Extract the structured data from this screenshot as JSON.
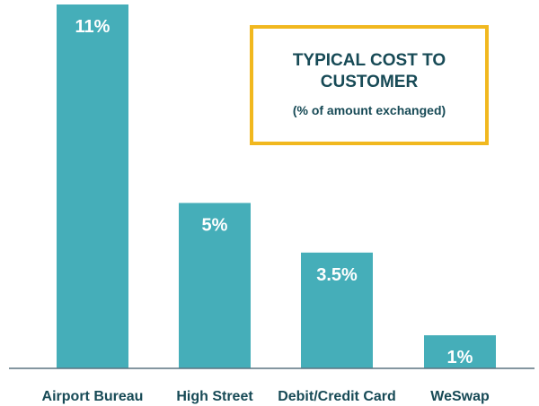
{
  "chart_data": {
    "type": "bar",
    "title_lines": [
      "TYPICAL COST TO",
      "CUSTOMER"
    ],
    "subtitle": "(% of amount exchanged)",
    "categories": [
      "Airport Bureau",
      "High Street",
      "Debit/Credit Card",
      "WeSwap"
    ],
    "values": [
      11,
      5,
      3.5,
      1
    ],
    "data_labels": [
      "11%",
      "5%",
      "3.5%",
      "1%"
    ],
    "ylim": [
      0,
      11
    ],
    "grid": false,
    "legend": "none"
  },
  "colors": {
    "bar": "#45aeb9",
    "text_dark": "#174a56",
    "title_border": "#f1b81f",
    "baseline": "#5b7480"
  }
}
